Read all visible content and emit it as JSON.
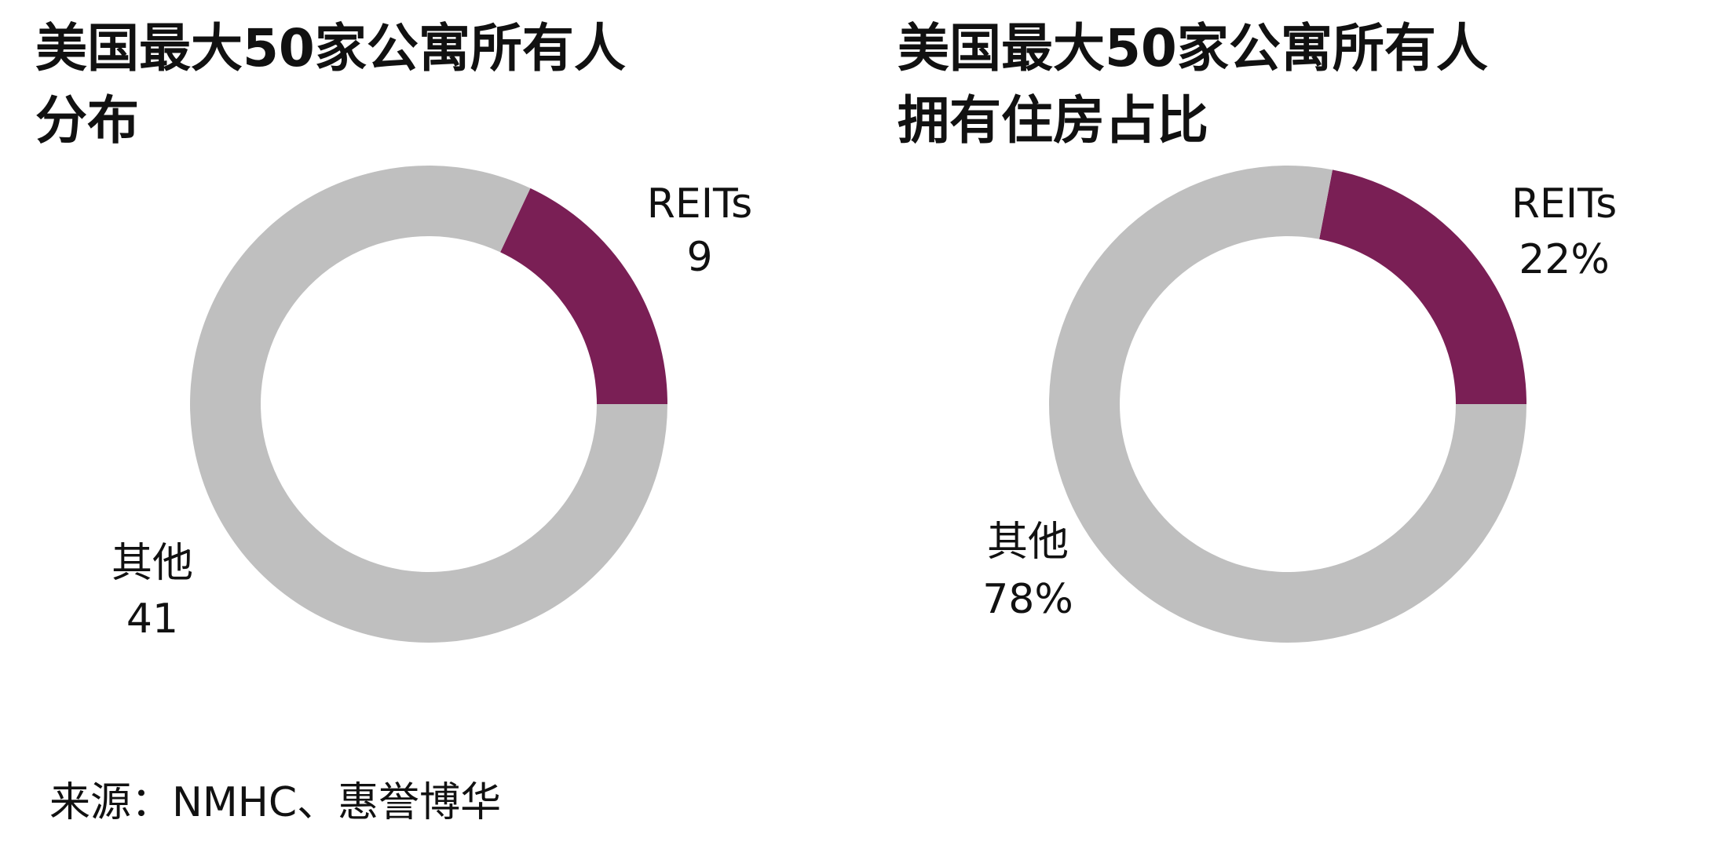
{
  "chart_data": [
    {
      "type": "donut",
      "title": "美国最大50家公寓所有人分布",
      "categories": [
        "REITs",
        "其他"
      ],
      "values": [
        9,
        41
      ],
      "colors": [
        "#7a1f55",
        "#bfbfbf"
      ]
    },
    {
      "type": "donut",
      "title": "美国最大50家公寓所有人拥有住房占比",
      "categories": [
        "REITs",
        "其他"
      ],
      "values": [
        22,
        78
      ],
      "value_labels": [
        "22%",
        "78%"
      ],
      "colors": [
        "#7a1f55",
        "#bfbfbf"
      ]
    }
  ],
  "source": "来源：NMHC、惠誉博华"
}
